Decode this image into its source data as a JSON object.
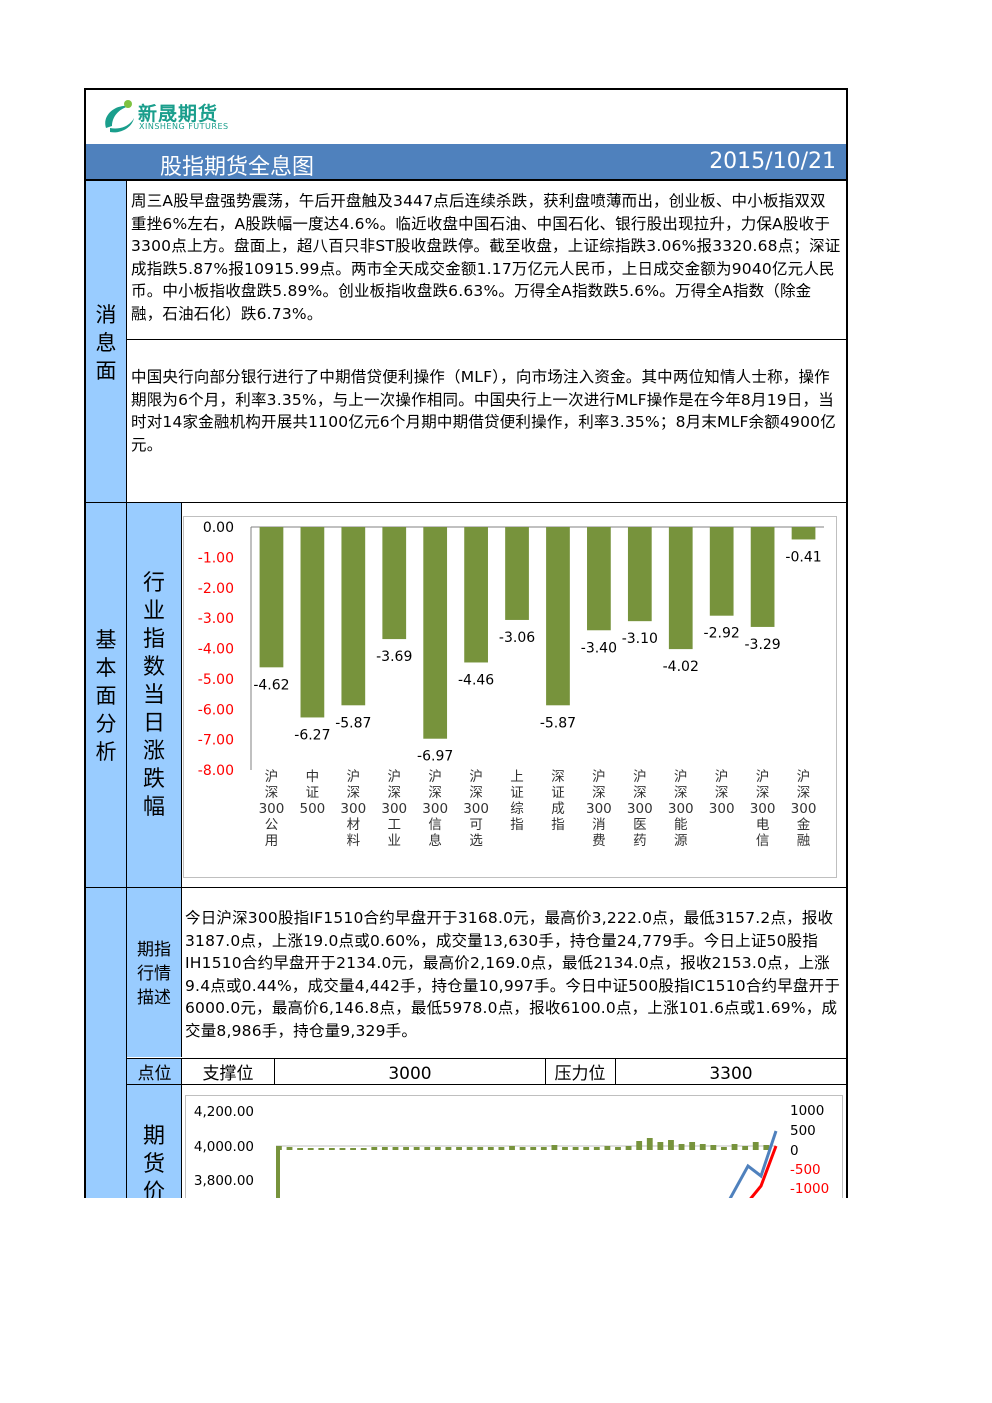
{
  "header": {
    "logo_cn": "新晟期货",
    "logo_en": "XINSHENG FUTURES",
    "title": "股指期货全息图",
    "date": "2015/10/21"
  },
  "news": {
    "label": "消息面",
    "para1": "周三A股早盘强势震荡，午后开盘触及3447点后连续杀跌，获利盘喷薄而出，创业板、中小板指双双重挫6%左右，A股跌幅一度达4.6%。临近收盘中国石油、中国石化、银行股出现拉升，力保A股收于3300点上方。盘面上，超八百只非ST股收盘跌停。截至收盘，上证综指跌3.06%报3320.68点；深证成指跌5.87%报10915.99点。两市全天成交金额1.17万亿元人民币，上日成交金额为9040亿元人民币。中小板指收盘跌5.89%。创业板指收盘跌6.63%。万得全A指数跌5.6%。万得全A指数（除金融，石油石化）跌6.73%。",
    "para2": "中国央行向部分银行进行了中期借贷便利操作（MLF），向市场注入资金。其中两位知情人士称，操作期限为6个月，利率3.35%，与上一次操作相同。中国央行上一次进行MLF操作是在今年8月19日，当时对14家金融机构开展共1100亿元6个月期中期借贷便利操作，利率3.35%；8月末MLF余额4900亿元。"
  },
  "fundamentals": {
    "label": "基本面分析",
    "chart_label": "行业指数当日涨跌幅"
  },
  "chart_data": [
    {
      "type": "bar",
      "categories": [
        "沪深300公用",
        "中证500",
        "沪深300材料",
        "沪深300工业",
        "沪深300信息",
        "沪深300可选",
        "上证综指",
        "深证成指",
        "沪深300消费",
        "沪深300医药",
        "沪深300能源",
        "沪深300",
        "沪深300电信",
        "沪深300金融"
      ],
      "category_labels": [
        "沪\n深\n300\n公\n用",
        "中\n证\n500",
        "沪\n深\n300\n材\n料",
        "沪\n深\n300\n工\n业",
        "沪\n深\n300\n信\n息",
        "沪\n深\n300\n可\n选",
        "上\n证\n综\n指",
        "深\n证\n成\n指",
        "沪\n深\n300\n消\n费",
        "沪\n深\n300\n医\n药",
        "沪\n深\n300\n能\n源",
        "沪\n深\n300",
        "沪\n深\n300\n电\n信",
        "沪\n深\n300\n金\n融"
      ],
      "values": [
        -4.62,
        -6.27,
        -5.87,
        -3.69,
        -6.97,
        -4.46,
        -3.06,
        -5.87,
        -3.4,
        -3.1,
        -4.02,
        -2.92,
        -3.29,
        -0.41
      ],
      "value_labels": [
        "-4.62",
        "-6.27",
        "-5.87",
        "-3.69",
        "-6.97",
        "-4.46",
        "-3.06",
        "-5.87",
        "-3.40",
        "-3.10",
        "-4.02",
        "-2.92",
        "-3.29",
        "-0.41"
      ],
      "ylim": [
        -8,
        0
      ],
      "yticks": [
        "0.00",
        "-1.00",
        "-2.00",
        "-3.00",
        "-4.00",
        "-5.00",
        "-6.00",
        "-7.00",
        "-8.00"
      ],
      "colors": {
        "bar": "#77933c",
        "negative_tick": "#ff0000",
        "zero_tick": "#000000"
      },
      "grid": false
    },
    {
      "type": "bar",
      "title": "",
      "yticks_left": [
        "4,200.00",
        "4,000.00",
        "3,800.00"
      ],
      "yticks_right": [
        "1000",
        "500",
        "0",
        "-500",
        "-1000"
      ],
      "colors": {
        "bar": "#77933c",
        "line_red": "#ff0000",
        "line_blue": "#4f81bd"
      }
    }
  ],
  "futures": {
    "quote_label": "期指行情描述",
    "quote_text": "今日沪深300股指IF1510合约早盘开于3168.0元，最高价3,222.0点，最低3157.2点，报收3187.0点，上涨19.0点或0.60%，成交量13,630手，持仓量24,779手。今日上证50股指IH1510合约早盘开于2134.0元，最高价2,169.0点，最低2134.0点，报收2153.0点，上涨9.4点或0.44%，成交量4,442手，持仓量10,997手。今日中证500股指IC1510合约早盘开于6000.0元，最高价6,146.8点，最低5978.0点，报收6100.0点，上涨101.6点或1.69%，成交量8,986手，持仓量9,329手。",
    "points_label": "点位",
    "support_label": "支撑位",
    "support_value": "3000",
    "pressure_label": "压力位",
    "pressure_value": "3300",
    "price_label": "期货价"
  }
}
